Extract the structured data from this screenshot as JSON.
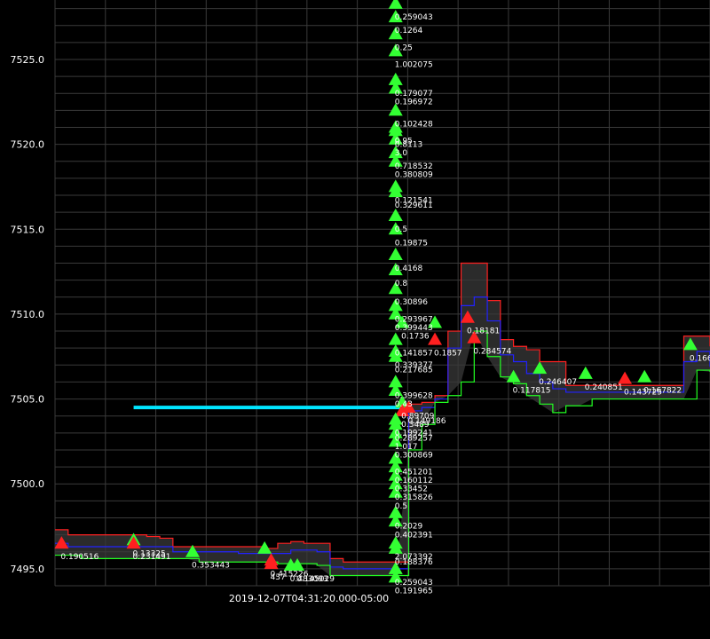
{
  "chart_data": {
    "type": "line",
    "title": "",
    "xlabel": "",
    "ylabel": "",
    "ylim": [
      7494.0,
      7528.5
    ],
    "y_ticks": [
      7495.0,
      7500.0,
      7505.0,
      7510.0,
      7515.0,
      7520.0,
      7525.0
    ],
    "y_tick_labels": [
      "7495.0",
      "7500.0",
      "7505.0",
      "7510.0",
      "7515.0",
      "7520.0",
      "7525.0"
    ],
    "x_axis_label": "2019-12-07T04:31:20.000-05:00",
    "grid": true,
    "background": "#000000",
    "colors": {
      "ask": "#ff2020",
      "mid": "#2222ff",
      "bid": "#22ff22",
      "band": "#3a3a3a",
      "reference": "#00e5ff",
      "buy": "#33ff33",
      "sell": "#ff2020",
      "text": "#ffffff",
      "grid": "#3a3a3a"
    },
    "reference_line": {
      "y": 7504.5,
      "x_start": 0.12,
      "x_end": 0.53
    },
    "series": [
      {
        "name": "ask",
        "x": [
          0.0,
          0.02,
          0.04,
          0.06,
          0.08,
          0.1,
          0.12,
          0.14,
          0.16,
          0.18,
          0.2,
          0.22,
          0.24,
          0.26,
          0.28,
          0.3,
          0.32,
          0.34,
          0.36,
          0.38,
          0.4,
          0.42,
          0.44,
          0.46,
          0.48,
          0.5,
          0.52,
          0.54,
          0.56,
          0.58,
          0.6,
          0.62,
          0.64,
          0.66,
          0.68,
          0.7,
          0.72,
          0.74,
          0.76,
          0.78,
          0.8,
          0.82,
          0.84,
          0.86,
          0.88,
          0.9,
          0.92,
          0.94,
          0.96,
          0.98,
          1.0
        ],
        "y": [
          7497.3,
          7497.0,
          7497.0,
          7497.0,
          7497.0,
          7497.0,
          7497.0,
          7496.9,
          7496.8,
          7496.3,
          7496.3,
          7496.3,
          7496.3,
          7496.3,
          7496.3,
          7496.3,
          7496.2,
          7496.5,
          7496.6,
          7496.5,
          7496.5,
          7495.6,
          7495.4,
          7495.4,
          7495.4,
          7495.4,
          7495.4,
          7504.7,
          7504.8,
          7505.2,
          7509.0,
          7513.0,
          7513.0,
          7510.8,
          7508.5,
          7508.1,
          7507.9,
          7507.2,
          7507.2,
          7505.8,
          7505.8,
          7505.8,
          7505.8,
          7505.8,
          7505.8,
          7505.8,
          7505.8,
          7505.8,
          7508.7,
          7508.7,
          7508.1
        ]
      },
      {
        "name": "mid",
        "x": [
          0.0,
          0.02,
          0.04,
          0.06,
          0.08,
          0.1,
          0.12,
          0.14,
          0.16,
          0.18,
          0.2,
          0.22,
          0.24,
          0.26,
          0.28,
          0.3,
          0.32,
          0.34,
          0.36,
          0.38,
          0.4,
          0.42,
          0.44,
          0.46,
          0.48,
          0.5,
          0.52,
          0.54,
          0.56,
          0.58,
          0.6,
          0.62,
          0.64,
          0.66,
          0.68,
          0.7,
          0.72,
          0.74,
          0.76,
          0.78,
          0.8,
          0.82,
          0.84,
          0.86,
          0.88,
          0.9,
          0.92,
          0.94,
          0.96,
          0.98,
          1.0
        ],
        "y": [
          7496.5,
          7496.3,
          7496.3,
          7496.3,
          7496.3,
          7496.3,
          7496.3,
          7496.3,
          7496.3,
          7496.0,
          7496.0,
          7496.0,
          7496.0,
          7496.0,
          7495.9,
          7495.9,
          7495.9,
          7495.9,
          7496.1,
          7496.1,
          7496.0,
          7495.1,
          7495.0,
          7495.0,
          7495.0,
          7495.0,
          7495.0,
          7504.3,
          7504.5,
          7505.0,
          7508.0,
          7510.5,
          7511.0,
          7509.6,
          7507.6,
          7507.2,
          7506.5,
          7506.0,
          7505.6,
          7505.4,
          7505.4,
          7505.4,
          7505.4,
          7505.4,
          7505.4,
          7505.4,
          7505.4,
          7505.4,
          7507.2,
          7507.8,
          7506.9
        ]
      },
      {
        "name": "bid",
        "x": [
          0.0,
          0.02,
          0.04,
          0.06,
          0.08,
          0.1,
          0.12,
          0.14,
          0.16,
          0.18,
          0.2,
          0.22,
          0.24,
          0.26,
          0.28,
          0.3,
          0.32,
          0.34,
          0.36,
          0.38,
          0.4,
          0.42,
          0.44,
          0.46,
          0.48,
          0.5,
          0.52,
          0.54,
          0.56,
          0.58,
          0.6,
          0.62,
          0.64,
          0.66,
          0.68,
          0.7,
          0.72,
          0.74,
          0.76,
          0.78,
          0.8,
          0.82,
          0.84,
          0.86,
          0.88,
          0.9,
          0.92,
          0.94,
          0.96,
          0.98,
          1.0
        ],
        "y": [
          7495.8,
          7495.8,
          7495.6,
          7495.6,
          7495.6,
          7495.6,
          7495.6,
          7495.6,
          7495.6,
          7495.6,
          7495.6,
          7495.4,
          7495.4,
          7495.4,
          7495.4,
          7495.4,
          7495.4,
          7495.3,
          7495.3,
          7495.3,
          7495.2,
          7494.6,
          7494.6,
          7494.6,
          7494.6,
          7494.6,
          7494.6,
          7502.0,
          7503.5,
          7504.8,
          7505.2,
          7506.0,
          7509.0,
          7507.5,
          7506.3,
          7505.9,
          7505.2,
          7504.7,
          7504.2,
          7504.6,
          7504.6,
          7505.0,
          7505.0,
          7505.0,
          7505.0,
          7505.0,
          7505.0,
          7505.0,
          7505.0,
          7506.7,
          7506.6
        ]
      }
    ],
    "trades": [
      {
        "side": "sell",
        "x": 0.01,
        "y": 7496.5,
        "label": "0.190516"
      },
      {
        "side": "buy",
        "x": 0.12,
        "y": 7496.7,
        "label": "0.13325"
      },
      {
        "side": "sell",
        "x": 0.12,
        "y": 7496.5,
        "label": "0.231491"
      },
      {
        "side": "buy",
        "x": 0.21,
        "y": 7496.0,
        "label": "0.353443"
      },
      {
        "side": "buy",
        "x": 0.32,
        "y": 7496.2,
        "label": ""
      },
      {
        "side": "sell",
        "x": 0.33,
        "y": 7495.3,
        "label": "437"
      },
      {
        "side": "sell",
        "x": 0.33,
        "y": 7495.5,
        "label": "0.415226"
      },
      {
        "side": "buy",
        "x": 0.36,
        "y": 7495.2,
        "label": "0.483093"
      },
      {
        "side": "buy",
        "x": 0.37,
        "y": 7495.2,
        "label": "0.145029"
      },
      {
        "side": "buy",
        "x": 0.52,
        "y": 7528.3,
        "label": "0.259043"
      },
      {
        "side": "buy",
        "x": 0.52,
        "y": 7527.5,
        "label": "0.1264"
      },
      {
        "side": "buy",
        "x": 0.52,
        "y": 7526.5,
        "label": "0.25"
      },
      {
        "side": "buy",
        "x": 0.52,
        "y": 7525.5,
        "label": "1.002075"
      },
      {
        "side": "buy",
        "x": 0.52,
        "y": 7523.8,
        "label": "0.179077"
      },
      {
        "side": "buy",
        "x": 0.52,
        "y": 7523.3,
        "label": "0.196972"
      },
      {
        "side": "buy",
        "x": 0.52,
        "y": 7522.0,
        "label": "0.102428"
      },
      {
        "side": "buy",
        "x": 0.52,
        "y": 7521.0,
        "label": "0.95"
      },
      {
        "side": "buy",
        "x": 0.52,
        "y": 7520.8,
        "label": "0.8113"
      },
      {
        "side": "buy",
        "x": 0.52,
        "y": 7520.3,
        "label": "3.0"
      },
      {
        "side": "buy",
        "x": 0.52,
        "y": 7519.5,
        "label": "0.718532"
      },
      {
        "side": "buy",
        "x": 0.52,
        "y": 7519.0,
        "label": "0.380809"
      },
      {
        "side": "buy",
        "x": 0.52,
        "y": 7517.5,
        "label": "0.121541"
      },
      {
        "side": "buy",
        "x": 0.52,
        "y": 7517.2,
        "label": "0.329611"
      },
      {
        "side": "buy",
        "x": 0.52,
        "y": 7515.8,
        "label": "0.5"
      },
      {
        "side": "buy",
        "x": 0.52,
        "y": 7515.0,
        "label": "0.19875"
      },
      {
        "side": "buy",
        "x": 0.52,
        "y": 7513.5,
        "label": "0.4168"
      },
      {
        "side": "buy",
        "x": 0.52,
        "y": 7512.6,
        "label": "0.8"
      },
      {
        "side": "buy",
        "x": 0.52,
        "y": 7511.5,
        "label": "0.30896"
      },
      {
        "side": "buy",
        "x": 0.52,
        "y": 7510.5,
        "label": "0.293967"
      },
      {
        "side": "buy",
        "x": 0.52,
        "y": 7510.0,
        "label": "0.399443"
      },
      {
        "side": "buy",
        "x": 0.53,
        "y": 7509.5,
        "label": "0.1736"
      },
      {
        "side": "buy",
        "x": 0.52,
        "y": 7508.5,
        "label": "0.141857"
      },
      {
        "side": "buy",
        "x": 0.52,
        "y": 7507.8,
        "label": "0.339377"
      },
      {
        "side": "buy",
        "x": 0.52,
        "y": 7507.5,
        "label": "0.217685"
      },
      {
        "side": "buy",
        "x": 0.52,
        "y": 7506.0,
        "label": "0.399628"
      },
      {
        "side": "buy",
        "x": 0.52,
        "y": 7505.5,
        "label": "0.43"
      },
      {
        "side": "buy",
        "x": 0.53,
        "y": 7504.8,
        "label": "0.89709"
      },
      {
        "side": "sell",
        "x": 0.54,
        "y": 7504.5,
        "label": "0.149186"
      },
      {
        "side": "sell",
        "x": 0.53,
        "y": 7504.3,
        "label": "0.3489"
      },
      {
        "side": "buy",
        "x": 0.52,
        "y": 7503.8,
        "label": "0.199241"
      },
      {
        "side": "buy",
        "x": 0.52,
        "y": 7503.5,
        "label": "0.289257"
      },
      {
        "side": "buy",
        "x": 0.52,
        "y": 7503.0,
        "label": "1.017"
      },
      {
        "side": "buy",
        "x": 0.52,
        "y": 7502.5,
        "label": "0.300869"
      },
      {
        "side": "buy",
        "x": 0.52,
        "y": 7501.5,
        "label": "0.451201"
      },
      {
        "side": "buy",
        "x": 0.52,
        "y": 7501.0,
        "label": "0.160112"
      },
      {
        "side": "buy",
        "x": 0.52,
        "y": 7500.5,
        "label": "0.33452"
      },
      {
        "side": "buy",
        "x": 0.52,
        "y": 7500.0,
        "label": "0.315826"
      },
      {
        "side": "buy",
        "x": 0.52,
        "y": 7499.5,
        "label": "0.5"
      },
      {
        "side": "buy",
        "x": 0.52,
        "y": 7498.3,
        "label": "0.2029"
      },
      {
        "side": "buy",
        "x": 0.52,
        "y": 7497.8,
        "label": "0.402391"
      },
      {
        "side": "buy",
        "x": 0.52,
        "y": 7496.5,
        "label": "2.073392"
      },
      {
        "side": "buy",
        "x": 0.52,
        "y": 7496.2,
        "label": "0.188376"
      },
      {
        "side": "buy",
        "x": 0.52,
        "y": 7495.0,
        "label": "0.259043"
      },
      {
        "side": "buy",
        "x": 0.52,
        "y": 7494.5,
        "label": "0.191965"
      },
      {
        "side": "buy",
        "x": 0.58,
        "y": 7509.5,
        "label": ""
      },
      {
        "side": "sell",
        "x": 0.58,
        "y": 7508.5,
        "label": "0.1857"
      },
      {
        "side": "sell",
        "x": 0.63,
        "y": 7509.8,
        "label": "0.18181"
      },
      {
        "side": "sell",
        "x": 0.64,
        "y": 7508.6,
        "label": "0.284574"
      },
      {
        "side": "buy",
        "x": 0.7,
        "y": 7506.3,
        "label": "0.117815"
      },
      {
        "side": "buy",
        "x": 0.74,
        "y": 7506.8,
        "label": "0.246407"
      },
      {
        "side": "buy",
        "x": 0.81,
        "y": 7506.5,
        "label": "0.240851"
      },
      {
        "side": "sell",
        "x": 0.87,
        "y": 7506.2,
        "label": "0.143725"
      },
      {
        "side": "buy",
        "x": 0.9,
        "y": 7506.3,
        "label": "0.167822"
      },
      {
        "side": "buy",
        "x": 0.97,
        "y": 7508.2,
        "label": "0.166"
      }
    ]
  }
}
